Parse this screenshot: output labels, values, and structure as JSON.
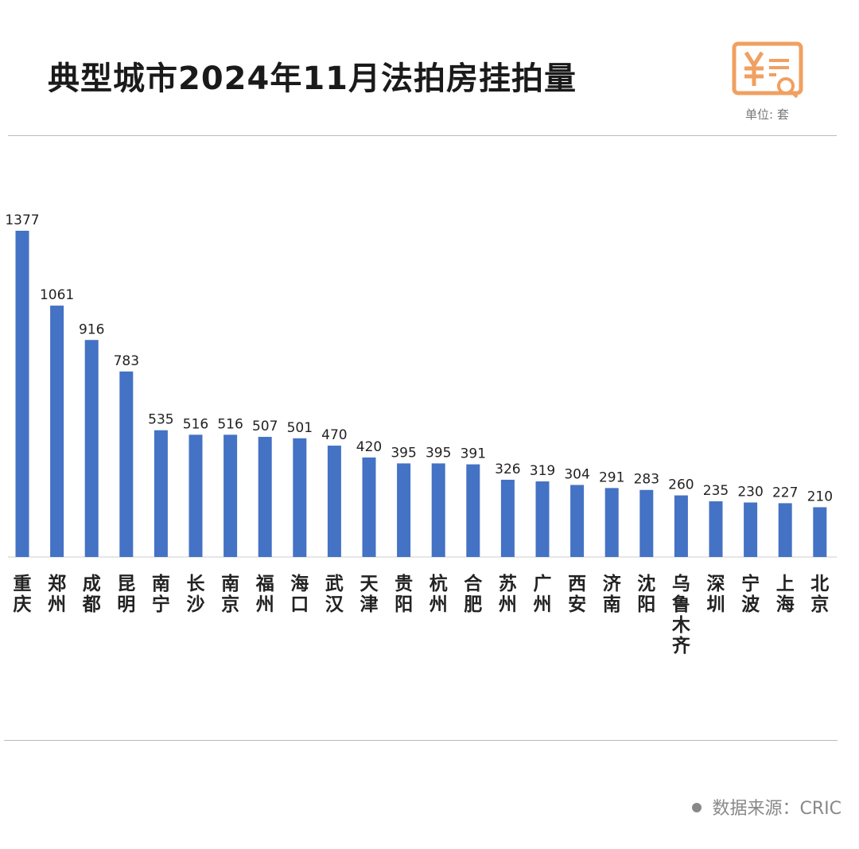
{
  "title": "典型城市2024年11月法拍房挂拍量",
  "unit": "单位: 套",
  "source": "数据来源：CRIC",
  "icon": "yuan-document-search-icon",
  "colors": {
    "bar": "#4472C4",
    "icon": "#F0A060"
  },
  "chart_data": {
    "type": "bar",
    "title": "典型城市2024年11月法拍房挂拍量",
    "xlabel": "",
    "ylabel": "单位: 套",
    "ylim": [
      0,
      1377
    ],
    "grid": false,
    "categories": [
      "重庆",
      "郑州",
      "成都",
      "昆明",
      "南宁",
      "长沙",
      "南京",
      "福州",
      "海口",
      "武汉",
      "天津",
      "贵阳",
      "杭州",
      "合肥",
      "苏州",
      "广州",
      "西安",
      "济南",
      "沈阳",
      "乌鲁木齐",
      "深圳",
      "宁波",
      "上海",
      "北京"
    ],
    "values": [
      1377,
      1061,
      916,
      783,
      535,
      516,
      516,
      507,
      501,
      470,
      420,
      395,
      395,
      391,
      326,
      319,
      304,
      291,
      283,
      260,
      235,
      230,
      227,
      210
    ]
  }
}
